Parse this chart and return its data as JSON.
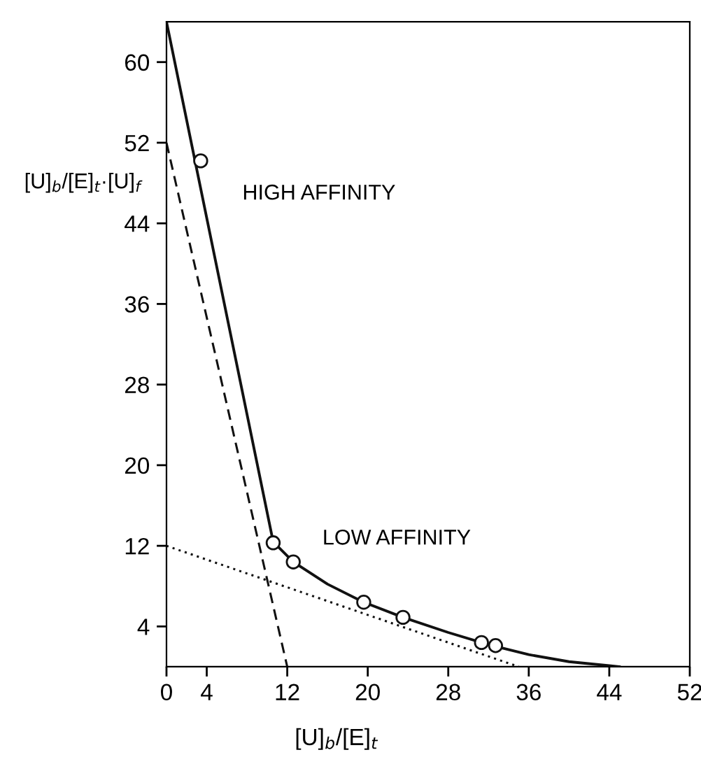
{
  "chart_data": {
    "type": "scatter",
    "xlabel": "[U]$_{b}$/[E]$_{t}$",
    "ylabel": "[U]$_{b}$/[E]$_{t}$·[U]$_{f}$",
    "xlim": [
      0,
      52
    ],
    "ylim": [
      0,
      64
    ],
    "xticks": [
      0,
      4,
      12,
      20,
      28,
      36,
      44,
      52
    ],
    "yticks": [
      4,
      12,
      20,
      28,
      36,
      44,
      52,
      60
    ],
    "grid": false,
    "legend": false,
    "annotations": [
      "HIGH AFFINITY",
      "LOW AFFINITY"
    ],
    "series": [
      {
        "type": "line",
        "color": "#111111",
        "line_style": "solid",
        "marker": "none",
        "x": [
          0,
          10.6,
          12.6,
          16,
          19.6,
          23.5,
          28,
          32,
          36,
          40,
          44,
          45
        ],
        "values": [
          64,
          12.4,
          10.4,
          8.2,
          6.4,
          4.9,
          3.4,
          2.2,
          1.2,
          0.5,
          0.1,
          0
        ]
      },
      {
        "type": "line",
        "color": "#111111",
        "line_style": "dashed",
        "marker": "none",
        "x": [
          0,
          12
        ],
        "values": [
          52,
          0
        ]
      },
      {
        "type": "line",
        "color": "#111111",
        "line_style": "dotted",
        "marker": "none",
        "x": [
          0,
          35
        ],
        "values": [
          12,
          0
        ]
      },
      {
        "color": "#111111",
        "marker": "circle",
        "x": [
          3.4,
          10.6,
          12.6,
          19.6,
          23.5,
          31.3,
          32.7
        ],
        "values": [
          50.2,
          12.3,
          10.4,
          6.4,
          4.9,
          2.4,
          2.1
        ]
      }
    ]
  }
}
